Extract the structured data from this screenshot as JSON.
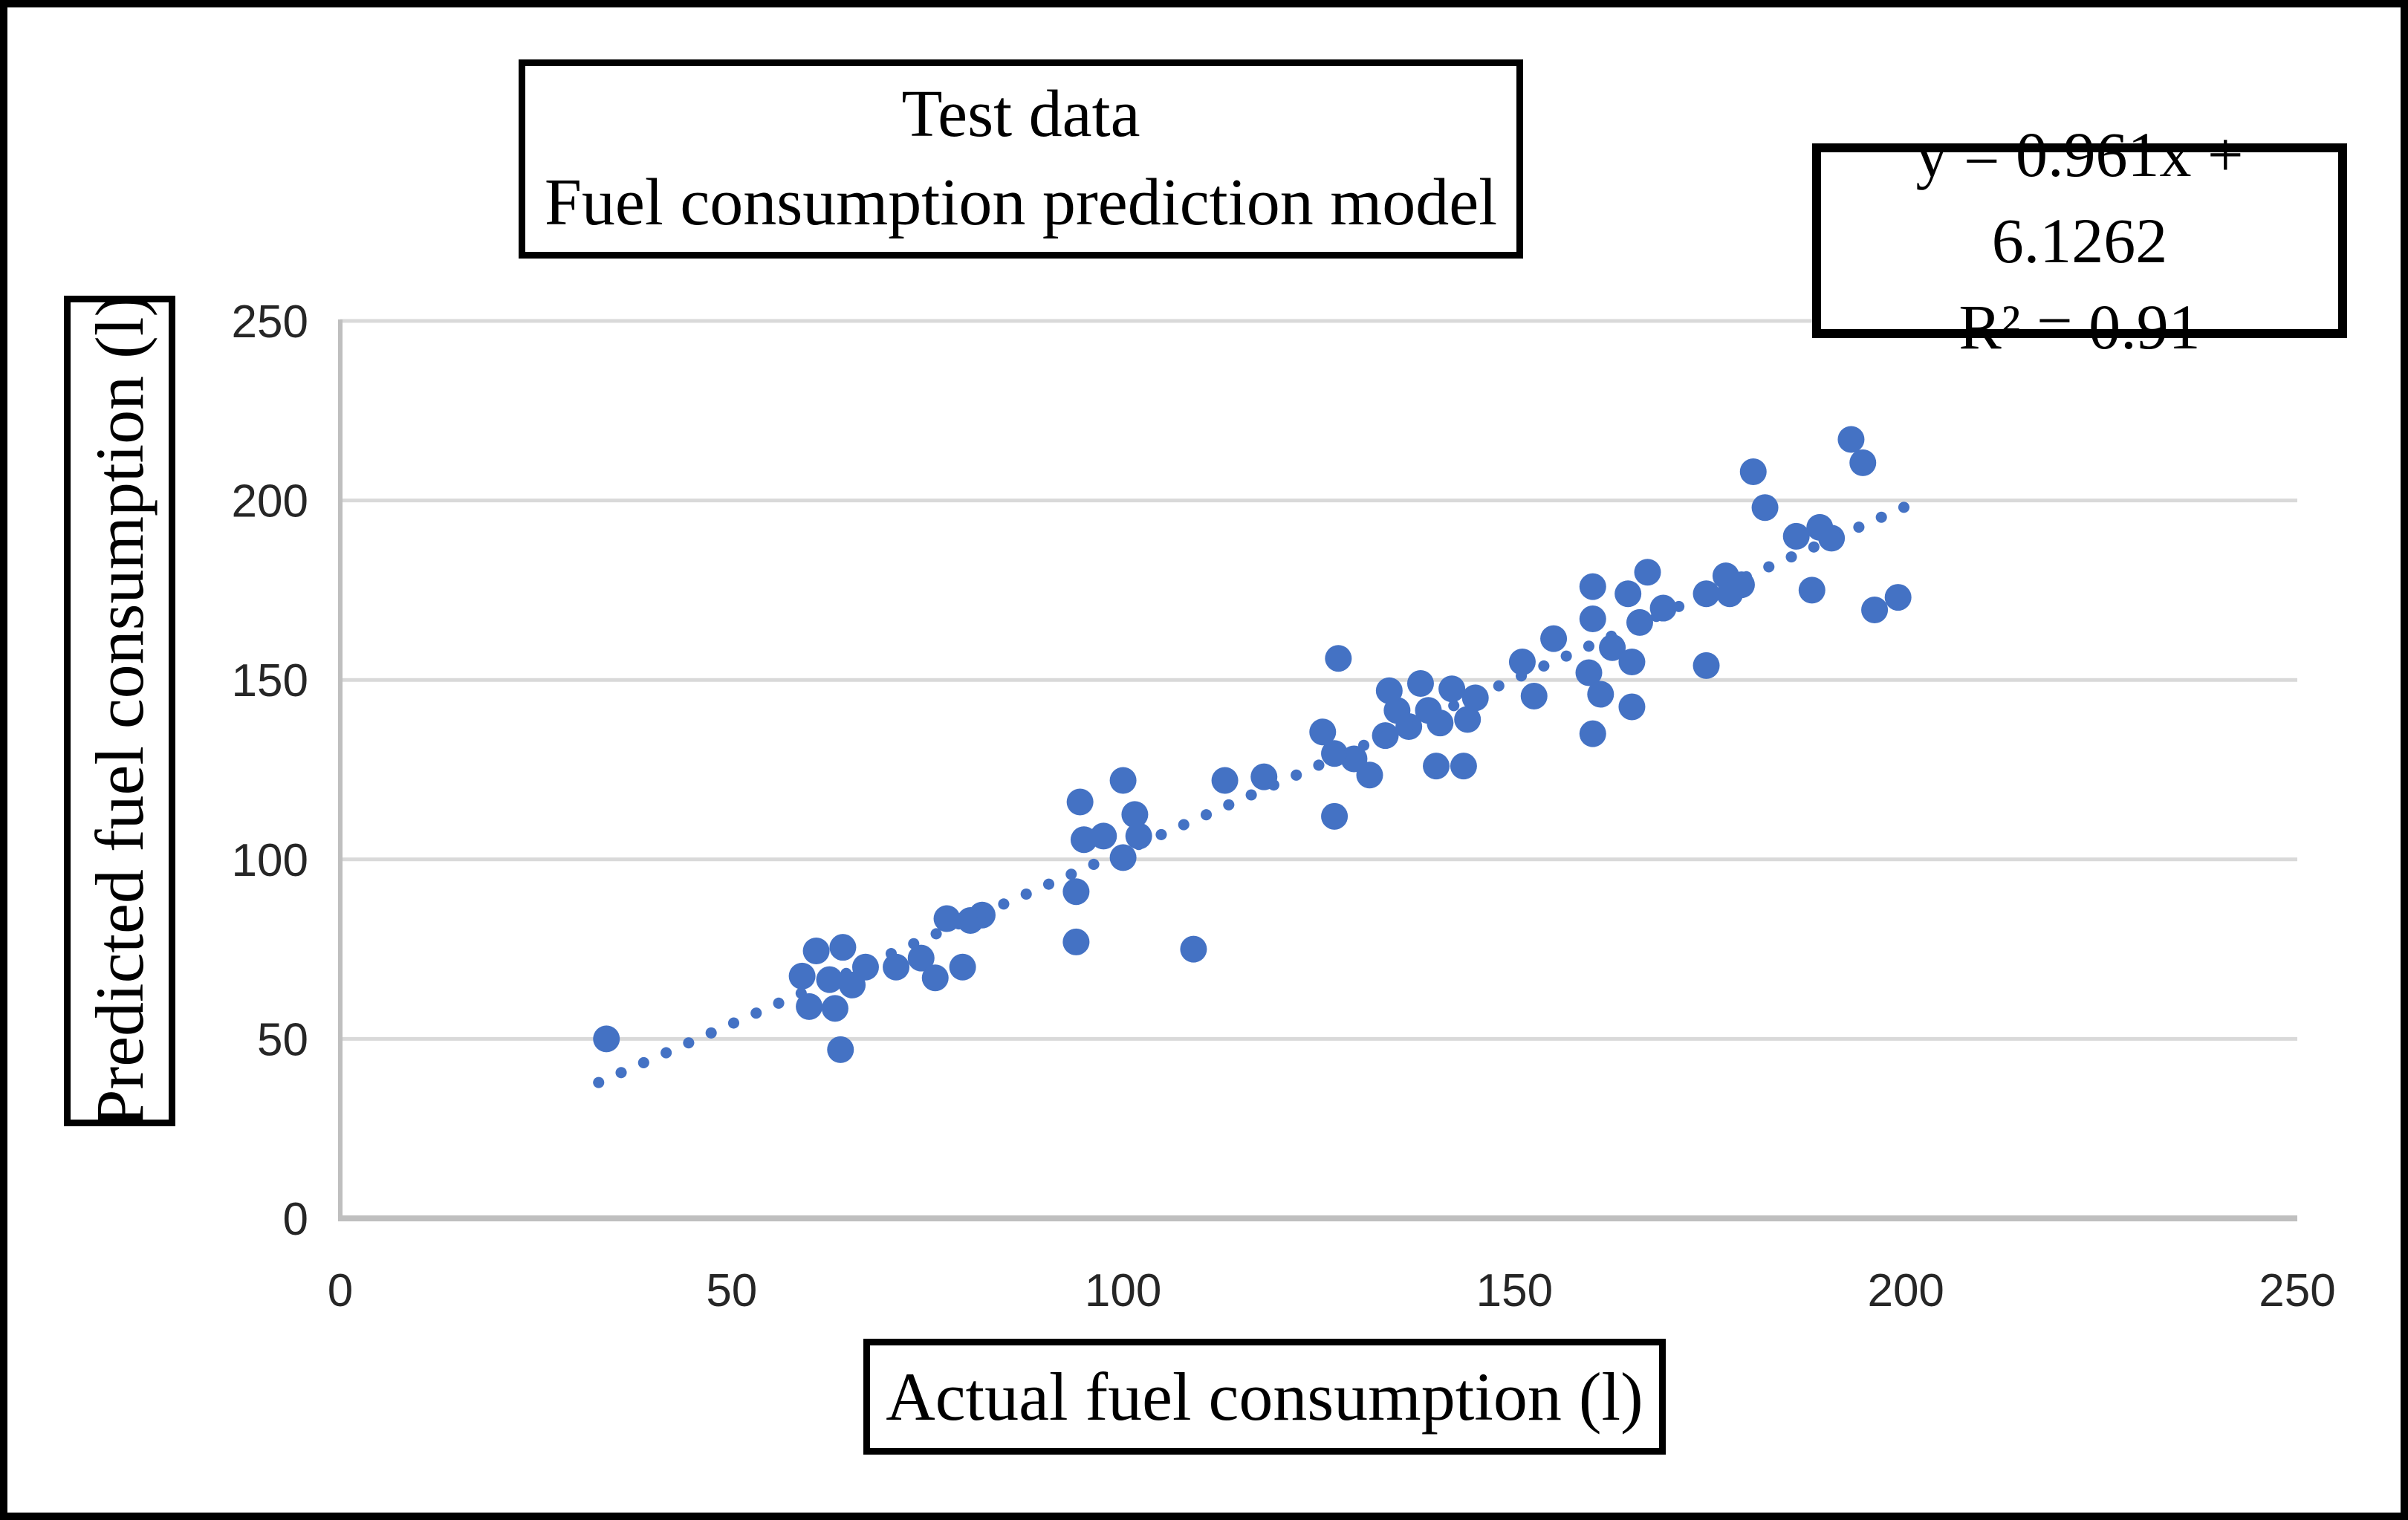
{
  "figure": {
    "background": "#ffffff",
    "border_color": "#000000"
  },
  "chart_data": {
    "type": "scatter",
    "title_lines": [
      "Test data",
      "Fuel consumption prediction model"
    ],
    "equation": "y = 0.961x + 6.1262",
    "r_squared": "R² = 0.91",
    "xlabel": "Actual fuel consumption (l)",
    "ylabel": "Predicted fuel consumption (l)",
    "xlim": [
      0,
      250
    ],
    "ylim": [
      0,
      250
    ],
    "x_ticks": [
      0,
      50,
      100,
      150,
      200,
      250
    ],
    "y_ticks": [
      0,
      50,
      100,
      150,
      200,
      250
    ],
    "grid": "horizontal-only",
    "legend": "none",
    "marker_color": "#4472C4",
    "grid_color": "#D9D9D9",
    "axis_color": "#BFBFBF",
    "tick_text_color": "#262626",
    "trendline": {
      "type": "linear",
      "slope": 0.961,
      "intercept": 6.1262,
      "x_start": 33,
      "x_end": 200,
      "style": "dotted",
      "color": "#4472C4"
    },
    "points": [
      [
        34,
        50
      ],
      [
        63.9,
        47
      ],
      [
        60.8,
        74.5
      ],
      [
        64.2,
        75.5
      ],
      [
        59,
        67.5
      ],
      [
        62.5,
        66.5
      ],
      [
        65.4,
        65
      ],
      [
        59.9,
        59
      ],
      [
        63.2,
        58.5
      ],
      [
        67.1,
        70
      ],
      [
        71,
        70
      ],
      [
        74.2,
        72.5
      ],
      [
        76,
        67
      ],
      [
        79.5,
        70
      ],
      [
        77.5,
        83.5
      ],
      [
        80.5,
        83
      ],
      [
        82,
        84.5
      ],
      [
        94,
        91
      ],
      [
        94,
        77
      ],
      [
        94.5,
        116
      ],
      [
        100,
        122
      ],
      [
        101.5,
        112.5
      ],
      [
        102,
        106.5
      ],
      [
        95,
        105.5
      ],
      [
        97.5,
        106.5
      ],
      [
        100,
        100.5
      ],
      [
        109,
        75
      ],
      [
        113,
        122
      ],
      [
        118,
        123
      ],
      [
        125.5,
        135.5
      ],
      [
        127,
        129.5
      ],
      [
        129.5,
        128
      ],
      [
        127.5,
        156
      ],
      [
        127,
        112
      ],
      [
        131.5,
        123.5
      ],
      [
        134,
        147
      ],
      [
        138,
        149
      ],
      [
        142,
        147.5
      ],
      [
        145,
        145
      ],
      [
        135,
        141.5
      ],
      [
        139,
        141.5
      ],
      [
        136.5,
        137
      ],
      [
        140.5,
        138
      ],
      [
        144,
        139
      ],
      [
        133.5,
        134.5
      ],
      [
        140,
        126
      ],
      [
        143.5,
        126
      ],
      [
        151,
        155
      ],
      [
        152.5,
        145.5
      ],
      [
        155,
        161.5
      ],
      [
        160,
        176
      ],
      [
        160,
        167
      ],
      [
        159.5,
        152
      ],
      [
        161,
        146
      ],
      [
        162.5,
        159
      ],
      [
        165,
        155
      ],
      [
        165,
        142.5
      ],
      [
        164.5,
        174
      ],
      [
        167,
        180
      ],
      [
        160,
        135
      ],
      [
        166,
        166
      ],
      [
        169,
        170
      ],
      [
        174.5,
        174
      ],
      [
        177.5,
        174
      ],
      [
        177,
        179
      ],
      [
        179,
        176.5
      ],
      [
        174.5,
        154
      ],
      [
        180.5,
        208
      ],
      [
        182,
        198
      ],
      [
        186,
        190
      ],
      [
        189,
        192.5
      ],
      [
        190.5,
        189.5
      ],
      [
        188,
        175
      ],
      [
        193,
        217
      ],
      [
        194.5,
        210.5
      ],
      [
        196,
        169.5
      ],
      [
        199,
        173
      ]
    ]
  }
}
